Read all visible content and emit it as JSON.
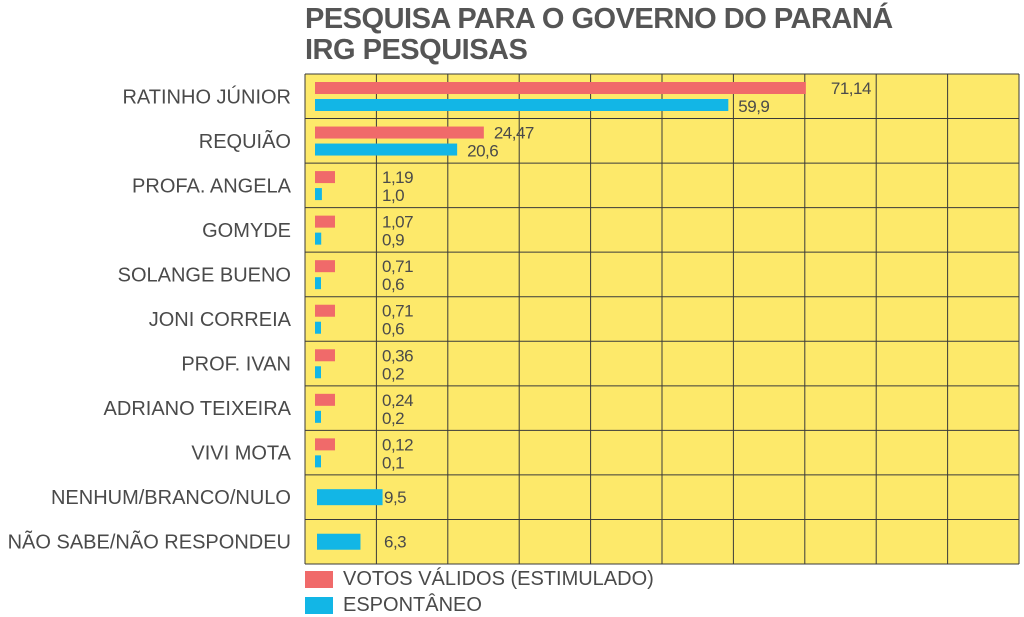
{
  "colors": {
    "background": "#fde96a",
    "grid": "#3a3a3a",
    "series_stimulated": "#f06a6a",
    "series_spontaneous": "#12b6e6"
  },
  "chart_data": {
    "type": "bar",
    "orientation": "horizontal",
    "title": "PESQUISA PARA O GOVERNO DO PARANÁ",
    "subtitle": "IRG PESQUISAS",
    "xlim": [
      0,
      100
    ],
    "grid": true,
    "legend_position": "bottom-left",
    "categories": [
      "RATINHO JÚNIOR",
      "REQUIÃO",
      "PROFA. ANGELA",
      "GOMYDE",
      "SOLANGE BUENO",
      "JONI CORREIA",
      "PROF. IVAN",
      "ADRIANO TEIXEIRA",
      "VIVI MOTA",
      "NENHUM/BRANCO/NULO",
      "NÃO SABE/NÃO RESPONDEU"
    ],
    "series": [
      {
        "name": "VOTOS VÁLIDOS (ESTIMULADO)",
        "values": [
          71.14,
          24.47,
          1.19,
          1.07,
          0.71,
          0.71,
          0.36,
          0.24,
          0.12,
          null,
          null
        ],
        "labels": [
          "71,14",
          "24,47",
          "1,19",
          "1,07",
          "0,71",
          "0,71",
          "0,36",
          "0,24",
          "0,12",
          null,
          null
        ]
      },
      {
        "name": "ESPONTÂNEO",
        "values": [
          59.9,
          20.6,
          1.0,
          0.9,
          0.6,
          0.6,
          0.2,
          0.2,
          0.1,
          9.5,
          6.3
        ],
        "labels": [
          "59,9",
          "20,6",
          "1,0",
          "0,9",
          "0,6",
          "0,6",
          "0,2",
          "0,2",
          "0,1",
          "9,5",
          "6,3"
        ]
      }
    ]
  }
}
